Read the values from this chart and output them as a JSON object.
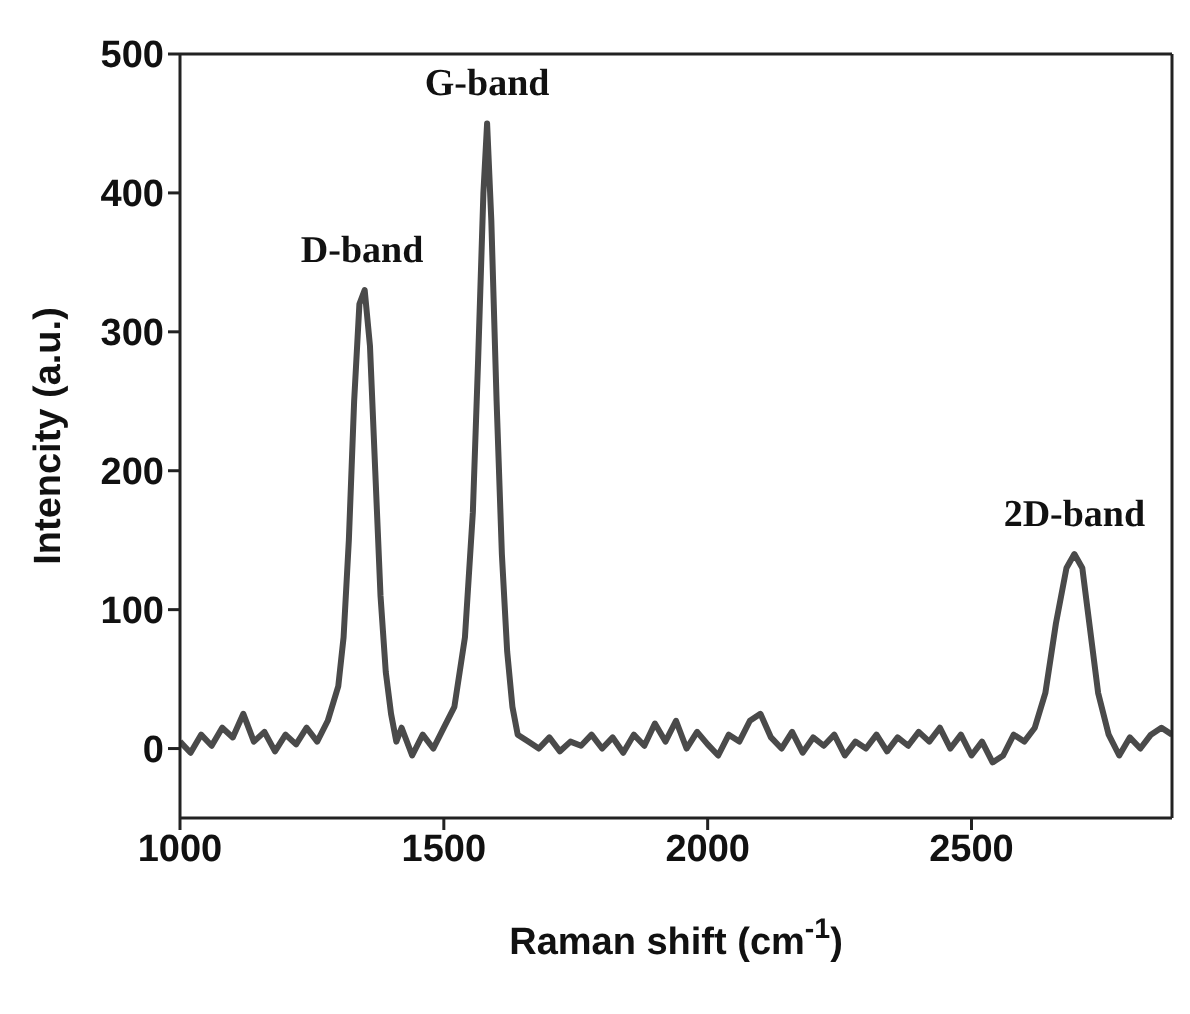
{
  "chart_data": {
    "type": "line",
    "xlabel": "Raman shift (cm$^{-1}$)",
    "ylabel": "Intencity (a.u.)",
    "xlim": [
      1000,
      2880
    ],
    "xticks": [
      1000,
      1500,
      2000,
      2500
    ],
    "ylim": [
      -50,
      500
    ],
    "yticks": [
      0,
      100,
      200,
      300,
      400,
      500
    ],
    "legend": false,
    "marker": "none",
    "line_style": "solid",
    "annotations": [
      {
        "text": "D-band",
        "x": 1345,
        "y": 330
      },
      {
        "text": "G-band",
        "x": 1582,
        "y": 450
      },
      {
        "text": "2D-band",
        "x": 2695,
        "y": 140
      }
    ],
    "series": [
      {
        "color": "#4a4a4a",
        "x": [
          1000,
          1020,
          1040,
          1060,
          1080,
          1100,
          1120,
          1140,
          1160,
          1180,
          1200,
          1220,
          1240,
          1260,
          1280,
          1300,
          1310,
          1320,
          1330,
          1340,
          1350,
          1360,
          1370,
          1380,
          1390,
          1400,
          1410,
          1420,
          1440,
          1460,
          1480,
          1500,
          1520,
          1540,
          1555,
          1565,
          1575,
          1582,
          1590,
          1600,
          1610,
          1620,
          1630,
          1640,
          1660,
          1680,
          1700,
          1720,
          1740,
          1760,
          1780,
          1800,
          1820,
          1840,
          1860,
          1880,
          1900,
          1920,
          1940,
          1960,
          1980,
          2000,
          2020,
          2040,
          2060,
          2080,
          2100,
          2120,
          2140,
          2160,
          2180,
          2200,
          2220,
          2240,
          2260,
          2280,
          2300,
          2320,
          2340,
          2360,
          2380,
          2400,
          2420,
          2440,
          2460,
          2480,
          2500,
          2520,
          2540,
          2560,
          2580,
          2600,
          2620,
          2640,
          2660,
          2680,
          2695,
          2710,
          2720,
          2740,
          2760,
          2780,
          2800,
          2820,
          2840,
          2860,
          2880
        ],
        "values": [
          5,
          -3,
          10,
          2,
          15,
          8,
          25,
          5,
          12,
          -2,
          10,
          3,
          15,
          5,
          20,
          45,
          80,
          150,
          250,
          320,
          330,
          290,
          200,
          110,
          55,
          25,
          5,
          15,
          -5,
          10,
          0,
          15,
          30,
          80,
          170,
          280,
          400,
          450,
          380,
          250,
          140,
          70,
          30,
          10,
          5,
          0,
          8,
          -2,
          5,
          2,
          10,
          0,
          8,
          -3,
          10,
          2,
          18,
          5,
          20,
          0,
          12,
          3,
          -5,
          10,
          5,
          20,
          25,
          8,
          0,
          12,
          -3,
          8,
          2,
          10,
          -5,
          5,
          0,
          10,
          -2,
          8,
          2,
          12,
          5,
          15,
          0,
          10,
          -5,
          5,
          -10,
          -5,
          10,
          5,
          15,
          40,
          90,
          130,
          140,
          130,
          100,
          40,
          10,
          -5,
          8,
          0,
          10,
          15,
          10
        ]
      }
    ]
  }
}
